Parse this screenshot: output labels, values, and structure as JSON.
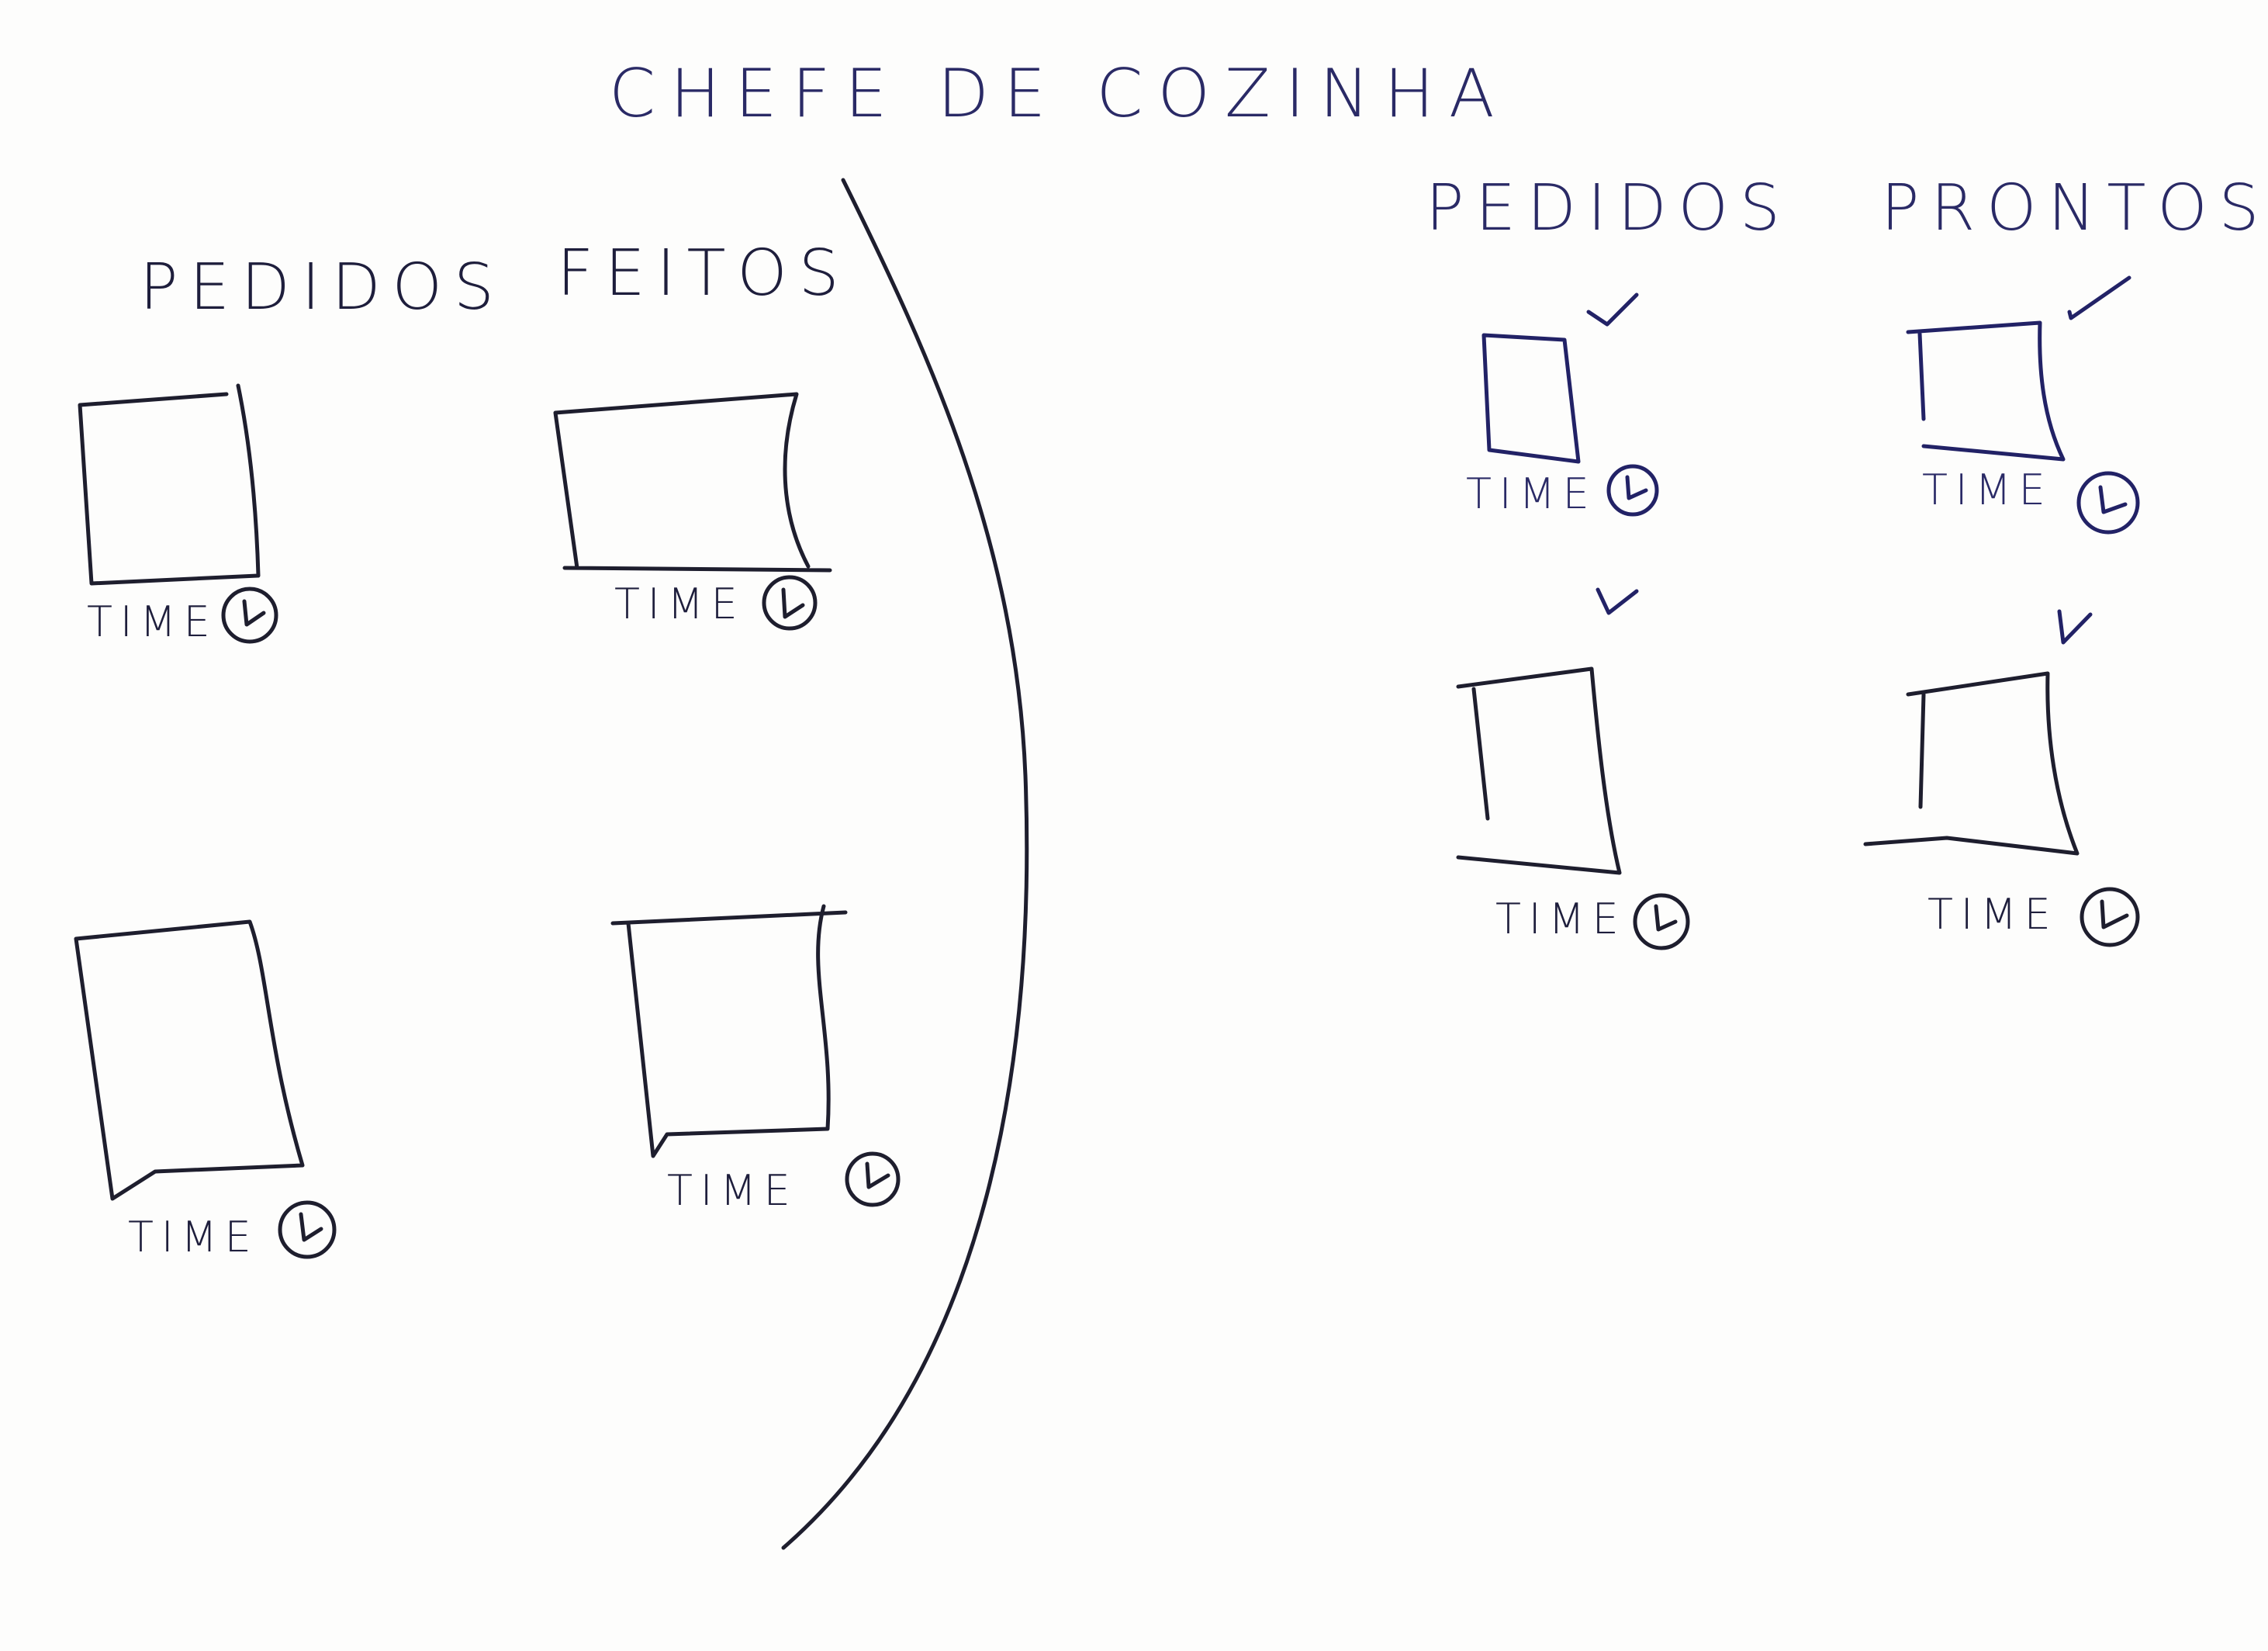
{
  "title": "CHEFE DE COZINHA",
  "left_panel": {
    "headers": [
      "PEDIDOS",
      "FEITOS"
    ],
    "cards": [
      {
        "time_label": "TIME",
        "icon": "clock-icon"
      },
      {
        "time_label": "TIME",
        "icon": "clock-icon"
      },
      {
        "time_label": "TIME",
        "icon": "clock-icon"
      },
      {
        "time_label": "TIME",
        "icon": "clock-icon"
      }
    ]
  },
  "right_panel": {
    "headers": [
      "PEDIDOS",
      "PRONTOS"
    ],
    "cards": [
      {
        "time_label": "TIME",
        "icon": "clock-icon",
        "check": "checkmark-icon"
      },
      {
        "time_label": "TIME",
        "icon": "clock-icon",
        "check": "checkmark-icon"
      },
      {
        "time_label": "TIME",
        "icon": "clock-icon",
        "check": "checkmark-icon"
      },
      {
        "time_label": "TIME",
        "icon": "clock-icon",
        "check": "checkmark-icon"
      }
    ]
  },
  "colors": {
    "ink_dark": "#1e1e2e",
    "ink_blue": "#222266",
    "paper": "#fdfdfc"
  }
}
